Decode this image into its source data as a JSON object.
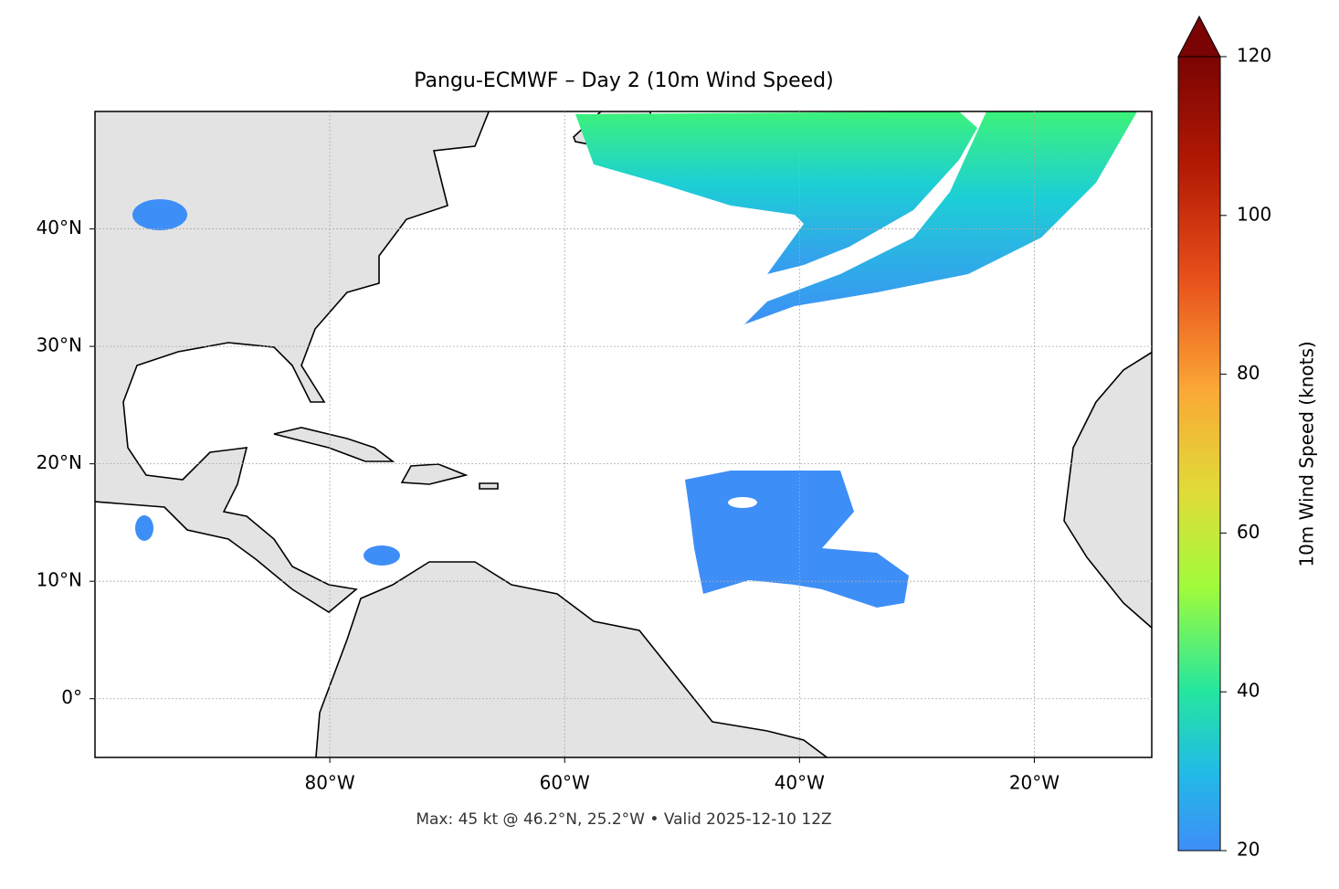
{
  "title": "Pangu-ECMWF – Day 2 (10m Wind Speed)",
  "map": {
    "lonlim": [
      -100,
      -10
    ],
    "latlim": [
      -5,
      50
    ],
    "lon_ticks": [
      {
        "value": -80,
        "label": "80°W"
      },
      {
        "value": -60,
        "label": "60°W"
      },
      {
        "value": -40,
        "label": "40°W"
      },
      {
        "value": -20,
        "label": "20°W"
      }
    ],
    "lat_ticks": [
      {
        "value": 40,
        "label": "40°N"
      },
      {
        "value": 30,
        "label": "30°N"
      },
      {
        "value": 20,
        "label": "20°N"
      },
      {
        "value": 10,
        "label": "10°N"
      },
      {
        "value": 0,
        "label": "0°"
      }
    ]
  },
  "footer": "Max: 45 kt @ 46.2°N, 25.2°W • Valid 2025-12-10 12Z",
  "colorbar": {
    "label": "10m Wind Speed (knots)",
    "lim": [
      20,
      120
    ],
    "ticks": [
      20,
      40,
      60,
      80,
      100,
      120
    ]
  }
}
